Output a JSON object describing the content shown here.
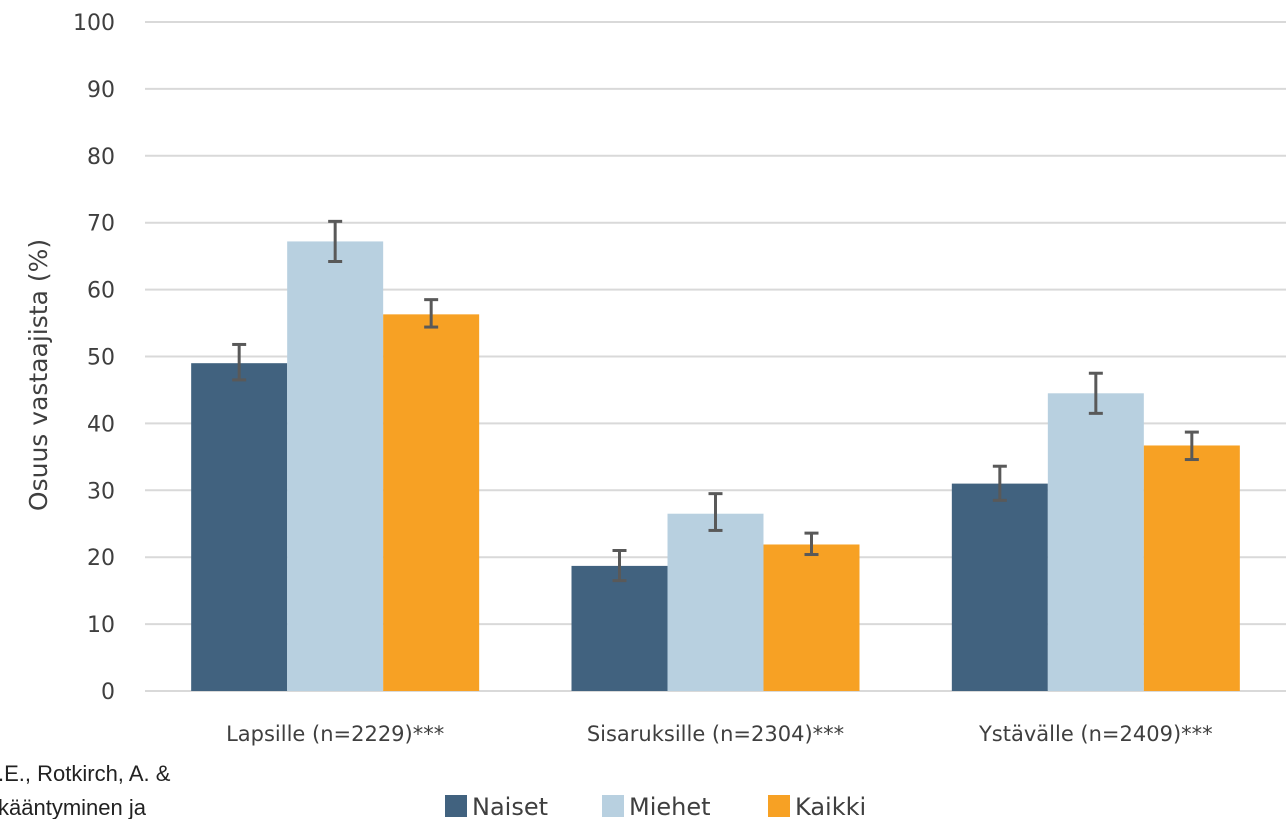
{
  "chart_data": {
    "type": "bar",
    "title": "",
    "xlabel": "",
    "ylabel": "Osuus vastaajista (%)",
    "ylim": [
      0,
      100
    ],
    "yticks": [
      "0",
      "10",
      "20",
      "30",
      "40",
      "50",
      "60",
      "70",
      "80",
      "90",
      "100"
    ],
    "grid": true,
    "legend_position": "bottom",
    "categories": [
      "Lapsille (n=2229)***",
      "Sisaruksille (n=2304)***",
      "Ystävälle (n=2409)***"
    ],
    "series": [
      {
        "name": "Naiset",
        "color": "#41627f",
        "values": [
          49,
          18.7,
          31
        ],
        "error_low": [
          46.5,
          16.5,
          28.5
        ],
        "error_high": [
          51.8,
          21,
          33.6
        ]
      },
      {
        "name": "Miehet",
        "color": "#b8d0e0",
        "values": [
          67.2,
          26.5,
          44.5
        ],
        "error_low": [
          64.2,
          24,
          41.5
        ],
        "error_high": [
          70.2,
          29.5,
          47.5
        ]
      },
      {
        "name": "Kaikki",
        "color": "#f7a124",
        "values": [
          56.3,
          21.9,
          36.7
        ],
        "error_low": [
          54.4,
          20.4,
          34.6
        ],
        "error_high": [
          58.5,
          23.6,
          38.7
        ]
      }
    ]
  },
  "clipped_text": {
    "line1": ".E., Rotkirch, A. &",
    "line2": "kääntyminen ja"
  }
}
